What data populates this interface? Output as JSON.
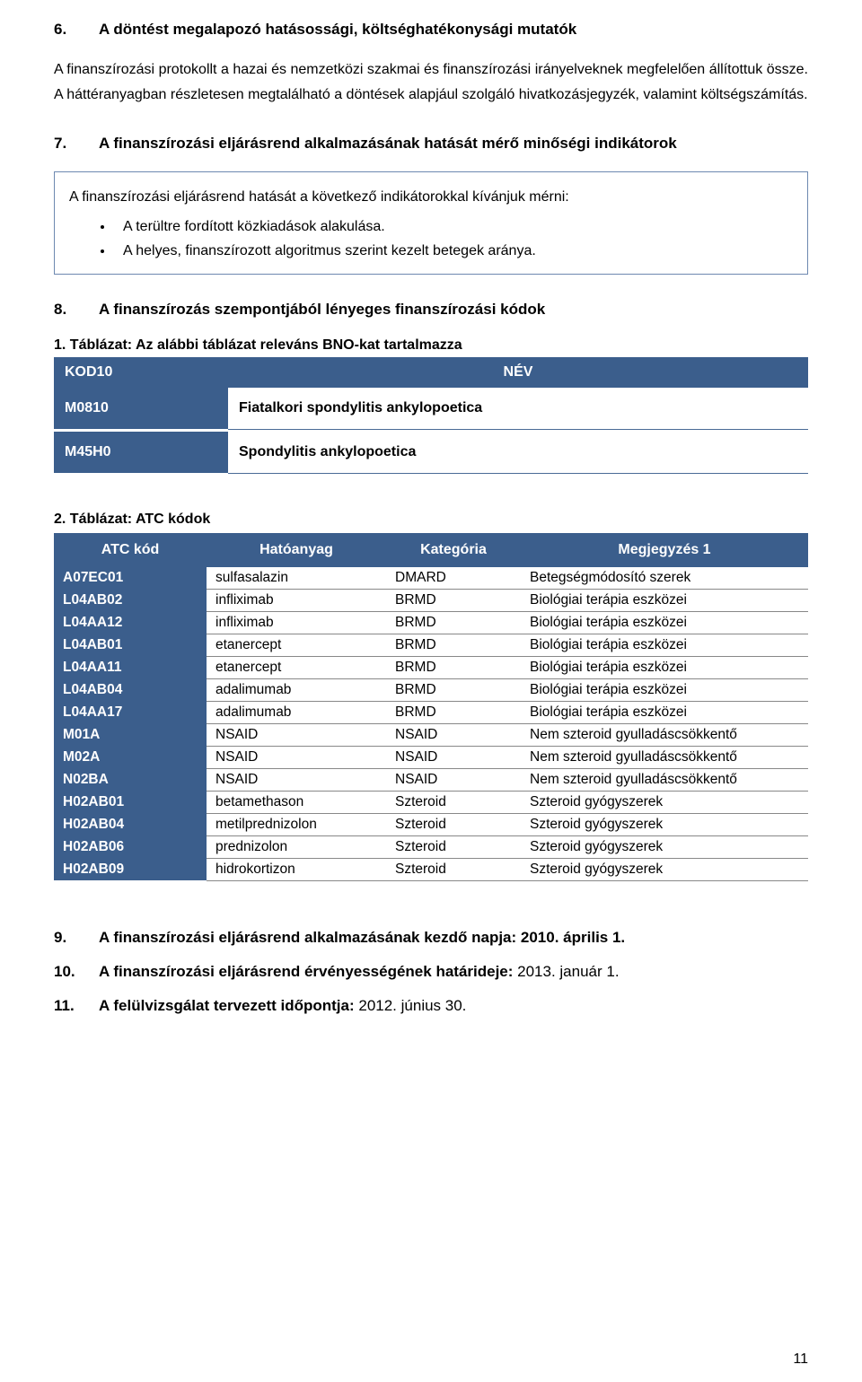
{
  "colors": {
    "table_header_bg": "#3b5e8c",
    "table_header_fg": "#ffffff",
    "box_border": "#6d88b0",
    "row_border": "#888888",
    "text": "#000000",
    "background": "#ffffff"
  },
  "typography": {
    "base_font_family": "Arial",
    "body_fontsize_pt": 12,
    "heading_fontsize_pt": 13,
    "heading_weight": "bold"
  },
  "section6": {
    "num": "6.",
    "title": "A döntést megalapozó hatásossági, költséghatékonysági mutatók",
    "para": "A finanszírozási protokollt a hazai és nemzetközi szakmai és finanszírozási irányelveknek megfelelően állítottuk össze. A háttéranyagban részletesen megtalálható a döntések alapjául szolgáló hivatkozásjegyzék, valamint költségszámítás."
  },
  "section7": {
    "num": "7.",
    "title": "A finanszírozási eljárásrend alkalmazásának hatását mérő minőségi indikátorok",
    "lead": "A finanszírozási eljárásrend hatását a következő indikátorokkal kívánjuk mérni:",
    "bullets": [
      "A terültre fordított közkiadások alakulása.",
      "A helyes, finanszírozott algoritmus szerint kezelt betegek aránya."
    ]
  },
  "section8": {
    "num": "8.",
    "title": "A finanszírozás szempontjából lényeges finanszírozási kódok"
  },
  "table1": {
    "caption": "1. Táblázat: Az alábbi táblázat releváns BNO-kat tartalmazza",
    "columns": [
      "KOD10",
      "NÉV"
    ],
    "rows": [
      [
        "M0810",
        "Fiatalkori spondylitis ankylopoetica"
      ],
      [
        "M45H0",
        "Spondylitis ankylopoetica"
      ]
    ]
  },
  "table2": {
    "caption": "2. Táblázat: ATC kódok",
    "columns": [
      "ATC kód",
      "Hatóanyag",
      "Kategória",
      "Megjegyzés 1"
    ],
    "rows": [
      [
        "A07EC01",
        "sulfasalazin",
        "DMARD",
        "Betegségmódosító szerek"
      ],
      [
        "L04AB02",
        "infliximab",
        "BRMD",
        "Biológiai terápia eszközei"
      ],
      [
        "L04AA12",
        "infliximab",
        "BRMD",
        "Biológiai terápia eszközei"
      ],
      [
        "L04AB01",
        "etanercept",
        "BRMD",
        "Biológiai terápia eszközei"
      ],
      [
        "L04AA11",
        "etanercept",
        "BRMD",
        "Biológiai terápia eszközei"
      ],
      [
        "L04AB04",
        "adalimumab",
        "BRMD",
        "Biológiai terápia eszközei"
      ],
      [
        "L04AA17",
        "adalimumab",
        "BRMD",
        "Biológiai terápia eszközei"
      ],
      [
        "M01A",
        "NSAID",
        "NSAID",
        "Nem szteroid gyulladáscsökkentő"
      ],
      [
        "M02A",
        "NSAID",
        "NSAID",
        "Nem szteroid gyulladáscsökkentő"
      ],
      [
        "N02BA",
        "NSAID",
        "NSAID",
        "Nem szteroid gyulladáscsökkentő"
      ],
      [
        "H02AB01",
        "betamethason",
        "Szteroid",
        "Szteroid gyógyszerek"
      ],
      [
        "H02AB04",
        "metilprednizolon",
        "Szteroid",
        "Szteroid gyógyszerek"
      ],
      [
        "H02AB06",
        "prednizolon",
        "Szteroid",
        "Szteroid gyógyszerek"
      ],
      [
        "H02AB09",
        "hidrokortizon",
        "Szteroid",
        "Szteroid gyógyszerek"
      ]
    ]
  },
  "footer": {
    "line9": {
      "num": "9.",
      "bold": "A finanszírozási eljárásrend alkalmazásának kezdő napja: 2010. április 1."
    },
    "line10": {
      "num": "10.",
      "bold": "A finanszírozási eljárásrend érvényességének határideje:",
      "normal": " 2013. január 1."
    },
    "line11": {
      "num": "11.",
      "bold": "A felülvizsgálat tervezett időpontja:",
      "normal": " 2012. június 30."
    }
  },
  "page_number": "11"
}
